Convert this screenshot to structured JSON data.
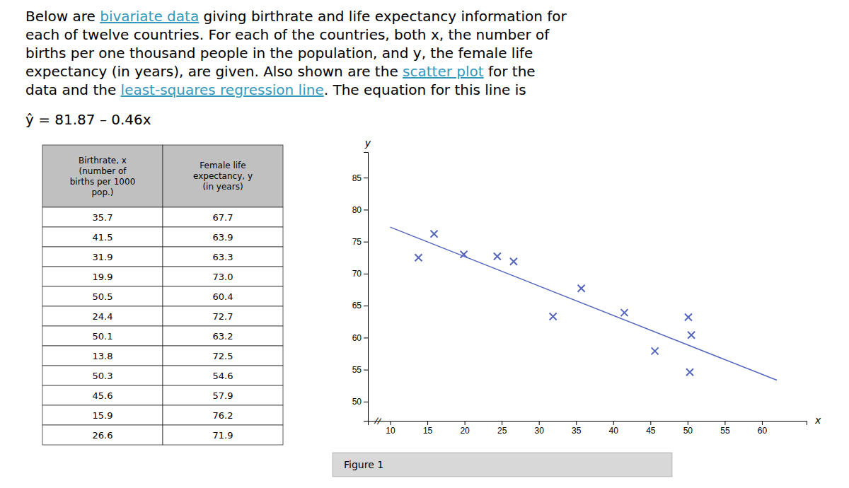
{
  "chart_data": [
    {
      "type": "text",
      "paragraph": [
        [
          {
            "text": "Below are "
          },
          {
            "text": "bivariate data",
            "color": "#3399bb"
          },
          {
            "text": " giving birthrate and life expectancy information for"
          }
        ],
        [
          {
            "text": "each of twelve countries. For each of the countries, both x, the number of"
          }
        ],
        [
          {
            "text": "births per one thousand people in the population, and y, the female life"
          }
        ],
        [
          {
            "text": "expectancy (in years), are given. Also shown are the "
          },
          {
            "text": "scatter plot",
            "color": "#3399bb"
          },
          {
            "text": " for the"
          }
        ],
        [
          {
            "text": "data and the "
          },
          {
            "text": "least-squares regression line",
            "color": "#3399bb"
          },
          {
            "text": ". The equation for this line is"
          }
        ]
      ],
      "equation": "ŷ = 81.87 – 0.46x"
    },
    {
      "type": "table",
      "color": "#c0c0c0",
      "series": [
        {
          "name": "Birthrate, x\n(number of\nbirths per 1000\npop.)",
          "values": [
            35.7,
            41.5,
            31.9,
            19.9,
            50.5,
            24.4,
            50.1,
            13.8,
            50.3,
            45.6,
            15.9,
            26.6
          ],
          "value_labels": [
            "35.7",
            "41.5",
            "31.9",
            "19.9",
            "50.5",
            "24.4",
            "50.1",
            "13.8",
            "50.3",
            "45.6",
            "15.9",
            "26.6"
          ]
        },
        {
          "name": "Female life\nexpectancy, y\n(in years)",
          "values": [
            67.7,
            63.9,
            63.3,
            73.0,
            60.4,
            72.7,
            63.2,
            72.5,
            54.6,
            57.9,
            76.2,
            71.9
          ],
          "value_labels": [
            "67.7",
            "63.9",
            "63.3",
            "73.0",
            "60.4",
            "72.7",
            "63.2",
            "72.5",
            "54.6",
            "57.9",
            "76.2",
            "71.9"
          ]
        }
      ]
    },
    {
      "type": "scatter",
      "xlabel": "x",
      "ylabel": "y",
      "xlim": [
        7,
        66
      ],
      "ylim": [
        47,
        89
      ],
      "xticks": [
        10,
        15,
        20,
        25,
        30,
        35,
        40,
        45,
        50,
        55,
        60
      ],
      "yticks": [
        50,
        55,
        60,
        65,
        70,
        75,
        80,
        85
      ],
      "grid": false,
      "annotations": [
        "//"
      ],
      "caption": "Figure 1",
      "series": [
        {
          "type": "scatter",
          "marker": "x",
          "color": "#5566bb",
          "x": [
            35.7,
            41.5,
            31.9,
            19.9,
            50.5,
            24.4,
            50.1,
            13.8,
            50.3,
            45.6,
            15.9,
            26.6
          ],
          "values": [
            67.7,
            63.9,
            63.3,
            73.0,
            60.4,
            72.7,
            63.2,
            72.5,
            54.6,
            57.9,
            76.2,
            71.9
          ]
        },
        {
          "type": "line",
          "color": "#5566bb",
          "x": [
            10,
            62
          ],
          "values": [
            77.27,
            53.35
          ]
        }
      ]
    }
  ]
}
